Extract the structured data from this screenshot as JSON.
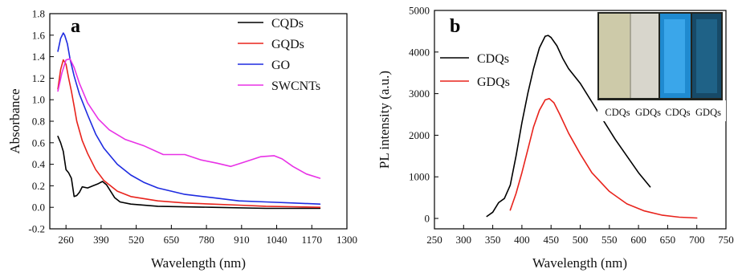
{
  "chart_data": [
    {
      "type": "line",
      "panel_label": "a",
      "xlabel": "Wavelength (nm)",
      "ylabel": "Absorbance",
      "xlim": [
        200,
        1300
      ],
      "ylim": [
        -0.2,
        1.8
      ],
      "xticks": [
        260,
        390,
        520,
        650,
        780,
        910,
        1040,
        1170,
        1300
      ],
      "yticks": [
        -0.2,
        0.0,
        0.2,
        0.4,
        0.6,
        0.8,
        1.0,
        1.2,
        1.4,
        1.6,
        1.8
      ],
      "grid": false,
      "legend_position": "top-right",
      "series": [
        {
          "name": "CQDs",
          "color": "#000000",
          "x": [
            230,
            240,
            250,
            260,
            270,
            280,
            290,
            300,
            310,
            320,
            340,
            360,
            380,
            395,
            410,
            420,
            440,
            460,
            500,
            600,
            800,
            1000,
            1200
          ],
          "y": [
            0.66,
            0.6,
            0.52,
            0.35,
            0.32,
            0.27,
            0.1,
            0.11,
            0.14,
            0.19,
            0.18,
            0.2,
            0.22,
            0.24,
            0.21,
            0.17,
            0.09,
            0.05,
            0.03,
            0.01,
            0.0,
            -0.01,
            -0.01
          ]
        },
        {
          "name": "GQDs",
          "color": "#e8231c",
          "x": [
            230,
            240,
            250,
            260,
            270,
            280,
            290,
            300,
            320,
            340,
            370,
            400,
            450,
            500,
            600,
            700,
            800,
            900,
            1000,
            1100,
            1200
          ],
          "y": [
            1.1,
            1.28,
            1.37,
            1.33,
            1.2,
            1.08,
            0.94,
            0.8,
            0.62,
            0.5,
            0.35,
            0.25,
            0.15,
            0.1,
            0.06,
            0.04,
            0.03,
            0.02,
            0.01,
            0.005,
            0.0
          ]
        },
        {
          "name": "GO",
          "color": "#1e2be0",
          "x": [
            230,
            240,
            250,
            255,
            265,
            275,
            290,
            310,
            340,
            370,
            400,
            450,
            500,
            550,
            600,
            650,
            700,
            800,
            900,
            1000,
            1100,
            1200
          ],
          "y": [
            1.45,
            1.57,
            1.62,
            1.6,
            1.52,
            1.38,
            1.22,
            1.05,
            0.86,
            0.68,
            0.55,
            0.4,
            0.3,
            0.23,
            0.18,
            0.15,
            0.12,
            0.09,
            0.06,
            0.05,
            0.04,
            0.03
          ]
        },
        {
          "name": "SWCNTs",
          "color": "#e832e6",
          "x": [
            230,
            245,
            260,
            275,
            290,
            310,
            340,
            380,
            420,
            480,
            550,
            620,
            700,
            760,
            820,
            870,
            920,
            980,
            1030,
            1060,
            1100,
            1150,
            1200
          ],
          "y": [
            1.08,
            1.25,
            1.37,
            1.38,
            1.3,
            1.15,
            0.97,
            0.82,
            0.72,
            0.63,
            0.57,
            0.49,
            0.49,
            0.44,
            0.41,
            0.38,
            0.42,
            0.47,
            0.48,
            0.45,
            0.38,
            0.31,
            0.27
          ]
        }
      ]
    },
    {
      "type": "line",
      "panel_label": "b",
      "xlabel": "Wavelength (nm)",
      "ylabel": "PL intensity (a.u.)",
      "xlim": [
        250,
        750
      ],
      "ylim": [
        -250,
        5000
      ],
      "xticks": [
        250,
        300,
        350,
        400,
        450,
        500,
        550,
        600,
        650,
        700,
        750
      ],
      "yticks": [
        0,
        1000,
        2000,
        3000,
        4000,
        5000
      ],
      "grid": false,
      "legend_position": "upper-left",
      "series": [
        {
          "name": "CDQs",
          "color": "#000000",
          "x": [
            340,
            350,
            360,
            370,
            380,
            390,
            400,
            410,
            420,
            430,
            440,
            445,
            450,
            460,
            470,
            480,
            500,
            520,
            540,
            560,
            580,
            600,
            620
          ],
          "y": [
            50,
            150,
            380,
            480,
            800,
            1500,
            2300,
            3000,
            3600,
            4100,
            4380,
            4400,
            4350,
            4150,
            3850,
            3600,
            3250,
            2800,
            2350,
            1900,
            1500,
            1100,
            760
          ]
        },
        {
          "name": "GDQs",
          "color": "#e8231c",
          "x": [
            380,
            390,
            400,
            410,
            420,
            430,
            440,
            447,
            455,
            465,
            480,
            500,
            520,
            550,
            580,
            610,
            640,
            670,
            700
          ],
          "y": [
            200,
            600,
            1100,
            1650,
            2200,
            2600,
            2850,
            2880,
            2780,
            2500,
            2050,
            1550,
            1100,
            650,
            350,
            180,
            80,
            30,
            10
          ]
        }
      ],
      "inset": {
        "labels": [
          "CDQs",
          "GDQs",
          "CDQs",
          "GDQs"
        ]
      }
    }
  ]
}
